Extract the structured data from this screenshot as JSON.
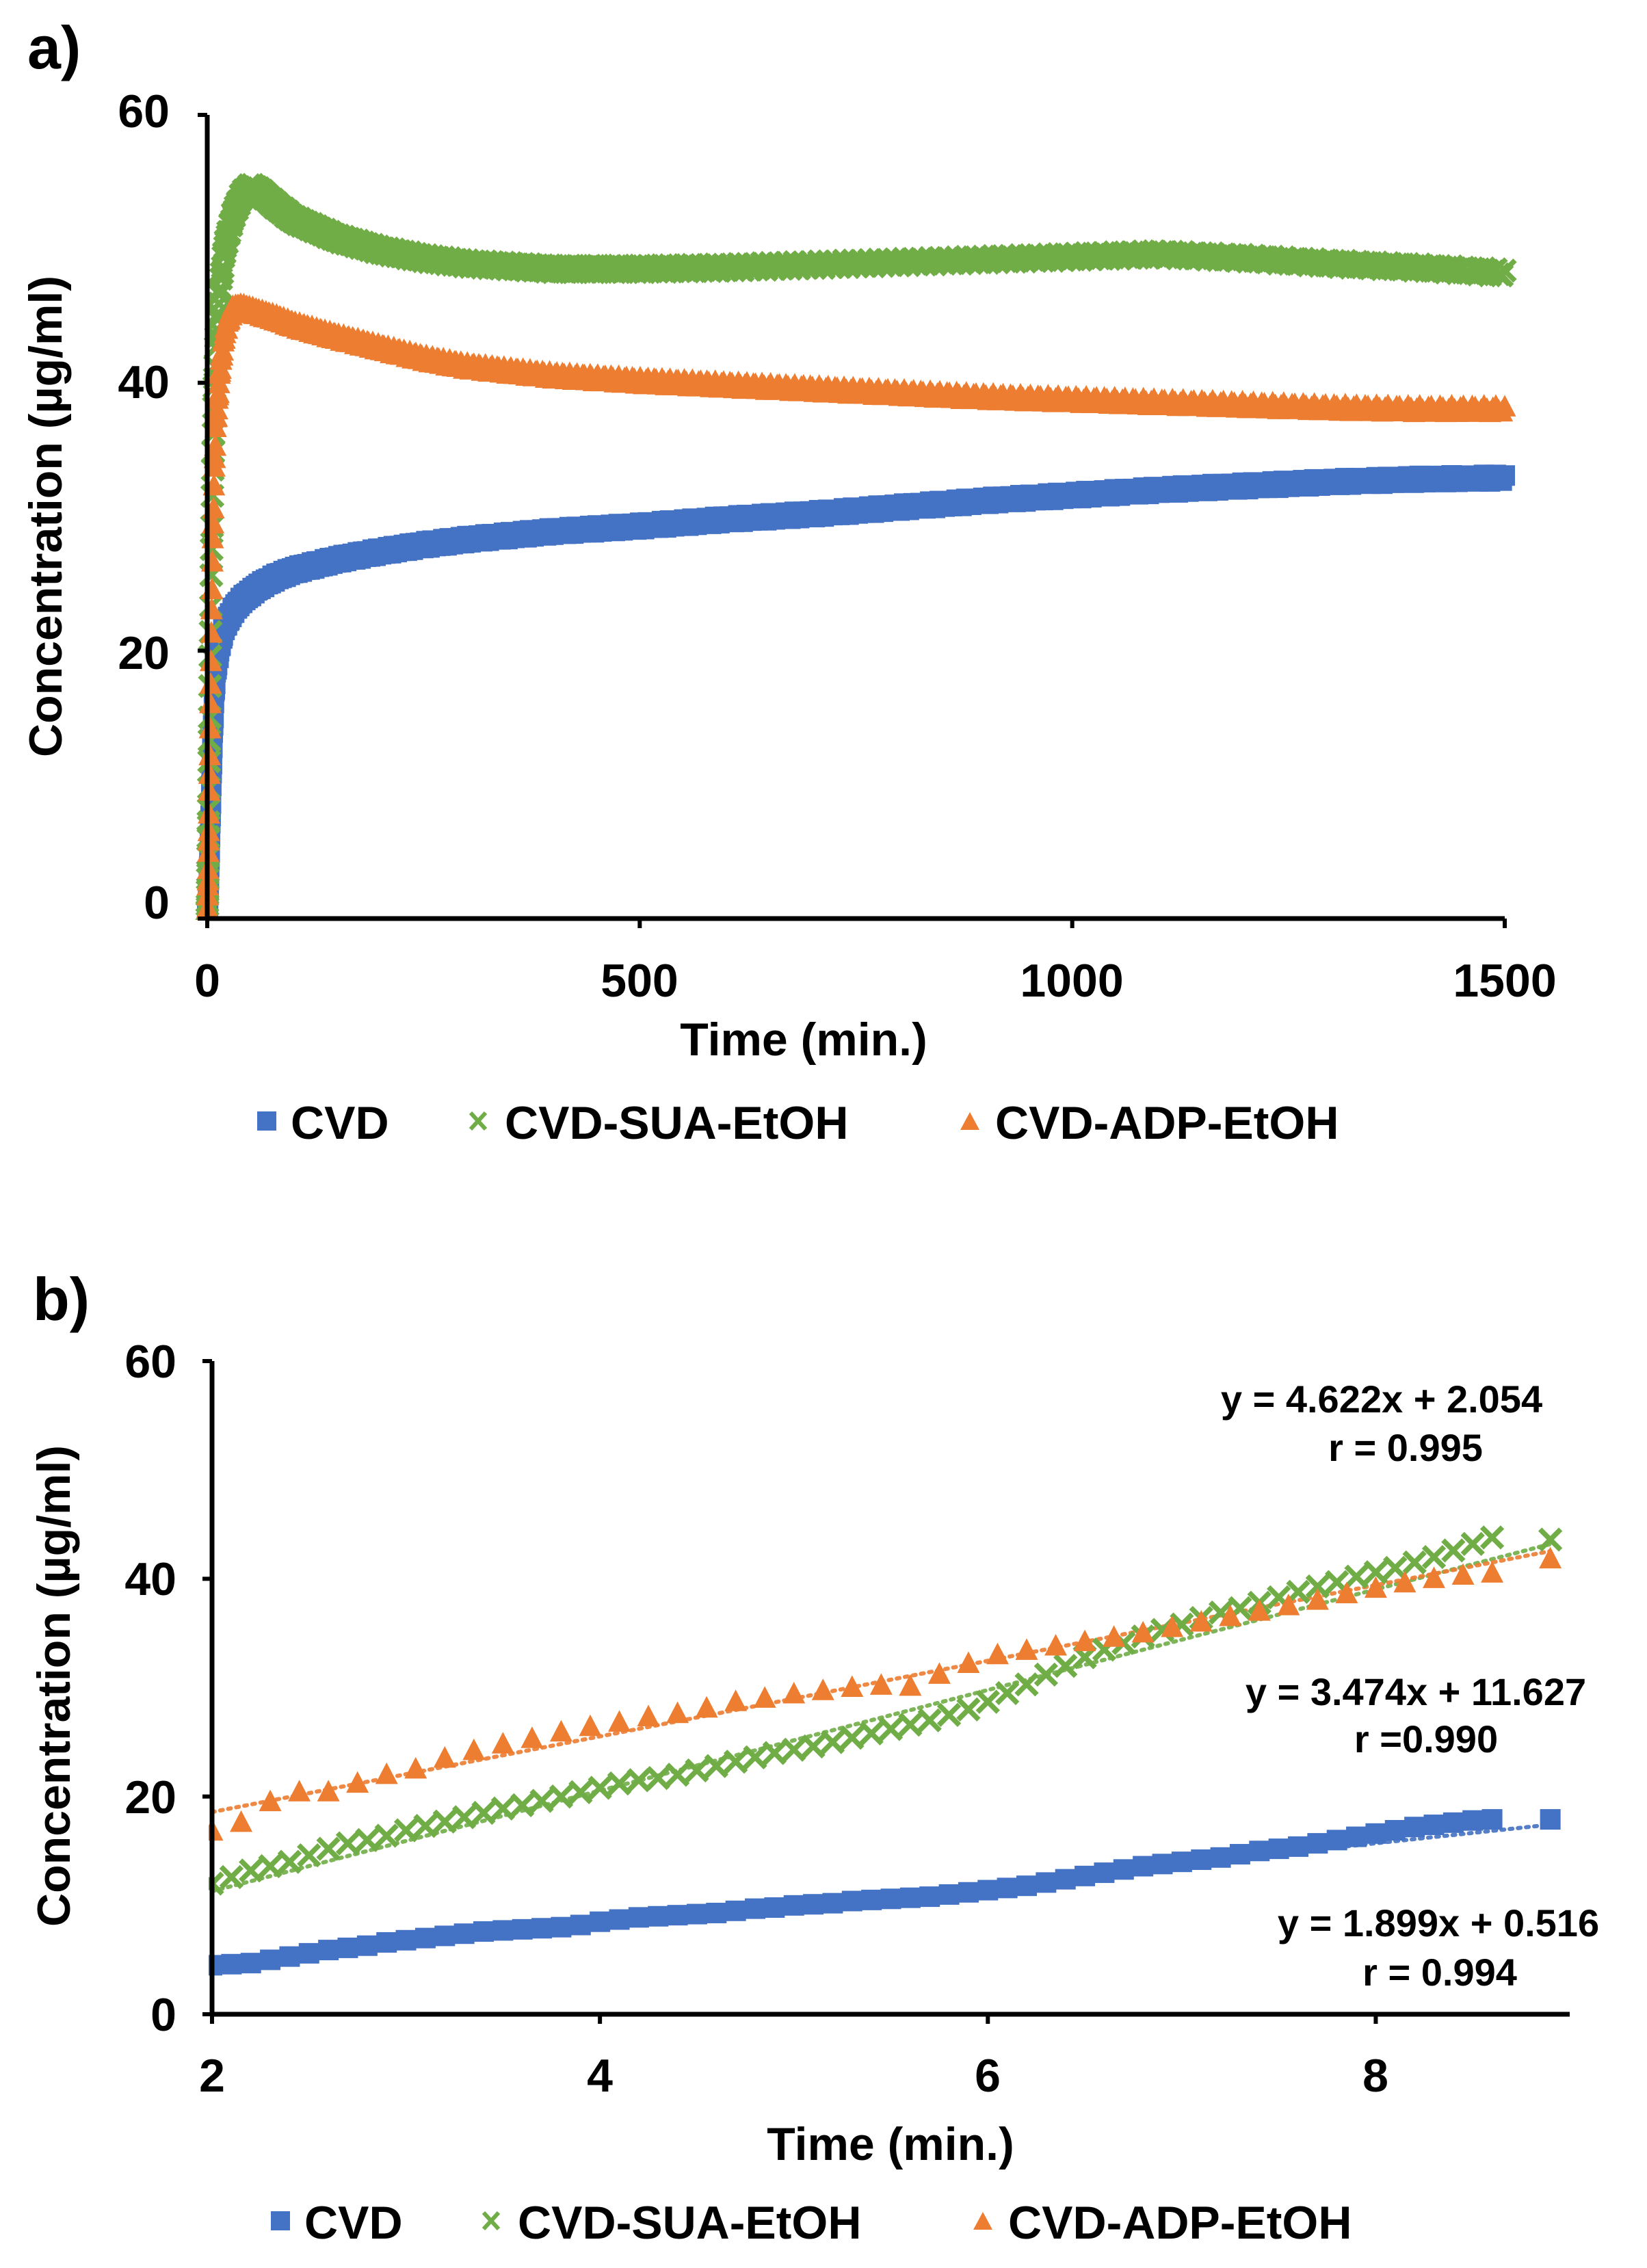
{
  "colors": {
    "cvd": "#4472C4",
    "sua": "#70AD47",
    "adp": "#ED7D31",
    "axis": "#000000",
    "text": "#000000"
  },
  "chart_data": [
    {
      "panel_label": "a)",
      "type": "scatter",
      "xlabel": "Time (min.)",
      "ylabel": "Concentration (µg/ml)",
      "xlim": [
        0,
        1500
      ],
      "ylim": [
        0,
        60
      ],
      "xticks": [
        "0",
        "500",
        "1000",
        "1500"
      ],
      "yticks": [
        "0",
        "20",
        "40",
        "60"
      ],
      "legend_position": "bottom",
      "series": [
        {
          "name": "CVD",
          "marker": "square",
          "color": "#4472C4",
          "x": [
            0,
            2,
            4,
            6,
            8,
            10,
            15,
            20,
            30,
            40,
            60,
            80,
            100,
            150,
            200,
            250,
            300,
            400,
            500,
            600,
            700,
            800,
            900,
            1000,
            1100,
            1200,
            1300,
            1400,
            1500
          ],
          "y": [
            0,
            3,
            8,
            13,
            16.5,
            18.5,
            20.5,
            21.8,
            23,
            23.8,
            24.8,
            25.5,
            26,
            26.8,
            27.4,
            27.9,
            28.3,
            28.9,
            29.3,
            29.8,
            30.2,
            30.7,
            31.2,
            31.6,
            32,
            32.3,
            32.6,
            32.8,
            32.9
          ]
        },
        {
          "name": "CVD-SUA-EtOH",
          "marker": "x",
          "color": "#70AD47",
          "x": [
            0,
            2,
            4,
            6,
            8,
            10,
            15,
            20,
            30,
            40,
            50,
            60,
            80,
            100,
            150,
            200,
            250,
            300,
            400,
            500,
            600,
            700,
            800,
            900,
            1000,
            1100,
            1200,
            1300,
            1400,
            1500
          ],
          "y": [
            0,
            10,
            22,
            32,
            39,
            43,
            47,
            50,
            52.5,
            54,
            54.6,
            54.3,
            53.2,
            52.2,
            50.8,
            49.9,
            49.3,
            48.9,
            48.5,
            48.5,
            48.6,
            48.8,
            49,
            49.2,
            49.4,
            49.6,
            49.3,
            48.9,
            48.6,
            48.2
          ]
        },
        {
          "name": "CVD-ADP-EtOH",
          "marker": "triangle",
          "color": "#ED7D31",
          "x": [
            0,
            2,
            4,
            6,
            8,
            10,
            15,
            20,
            25,
            30,
            40,
            60,
            80,
            100,
            150,
            200,
            250,
            300,
            400,
            500,
            600,
            700,
            800,
            900,
            1000,
            1100,
            1200,
            1300,
            1400,
            1500
          ],
          "y": [
            0,
            8,
            18,
            27,
            33,
            37,
            41,
            43.5,
            44.8,
            45.5,
            45.6,
            45.2,
            44.8,
            44.3,
            43.4,
            42.6,
            41.8,
            41.2,
            40.5,
            40.1,
            39.8,
            39.5,
            39.2,
            38.9,
            38.7,
            38.5,
            38.3,
            38.1,
            38,
            38
          ]
        }
      ]
    },
    {
      "panel_label": "b)",
      "type": "scatter",
      "xlabel": "Time (min.)",
      "ylabel": "Concentration (µg/ml)",
      "xlim": [
        2,
        9
      ],
      "ylim": [
        0,
        60
      ],
      "xticks": [
        "2",
        "4",
        "6",
        "8"
      ],
      "yticks": [
        "0",
        "20",
        "40",
        "60"
      ],
      "legend_position": "bottom",
      "trendlines": [
        {
          "series": "CVD",
          "slope": 1.899,
          "intercept": 0.516,
          "equation": "y = 1.899x + 0.516",
          "r": "r = 0.994"
        },
        {
          "series": "CVD-SUA-EtOH",
          "slope": 4.622,
          "intercept": 2.054,
          "equation": "y = 4.622x + 2.054",
          "r": "r = 0.995"
        },
        {
          "series": "CVD-ADP-EtOH",
          "slope": 3.474,
          "intercept": 11.627,
          "equation": "y = 3.474x + 11.627",
          "r": "r =0.990"
        }
      ],
      "series": [
        {
          "name": "CVD",
          "marker": "square",
          "color": "#4472C4",
          "x": [
            2.0,
            2.1,
            2.2,
            2.3,
            2.4,
            2.5,
            2.6,
            2.7,
            2.8,
            2.9,
            3.0,
            3.1,
            3.2,
            3.3,
            3.4,
            3.5,
            3.6,
            3.7,
            3.8,
            3.9,
            4.0,
            4.1,
            4.2,
            4.3,
            4.4,
            4.5,
            4.6,
            4.7,
            4.8,
            4.9,
            5.0,
            5.1,
            5.2,
            5.3,
            5.4,
            5.5,
            5.6,
            5.7,
            5.8,
            5.9,
            6.0,
            6.1,
            6.2,
            6.3,
            6.4,
            6.5,
            6.6,
            6.7,
            6.8,
            6.9,
            7.0,
            7.1,
            7.2,
            7.3,
            7.4,
            7.5,
            7.6,
            7.7,
            7.8,
            7.9,
            8.0,
            8.1,
            8.2,
            8.3,
            8.4,
            8.5,
            8.6,
            8.9
          ],
          "y": [
            4.5,
            4.6,
            4.7,
            5.0,
            5.3,
            5.6,
            5.9,
            6.1,
            6.3,
            6.6,
            6.8,
            7.0,
            7.2,
            7.4,
            7.6,
            7.7,
            7.8,
            7.9,
            8.0,
            8.2,
            8.5,
            8.7,
            8.9,
            9.0,
            9.1,
            9.2,
            9.3,
            9.5,
            9.7,
            9.8,
            10.0,
            10.1,
            10.2,
            10.4,
            10.5,
            10.6,
            10.7,
            10.8,
            11.0,
            11.2,
            11.4,
            11.6,
            11.8,
            12.1,
            12.4,
            12.7,
            13.0,
            13.3,
            13.6,
            13.8,
            14.0,
            14.2,
            14.4,
            14.7,
            15.0,
            15.2,
            15.4,
            15.7,
            16.0,
            16.3,
            16.6,
            16.9,
            17.2,
            17.4,
            17.6,
            17.8,
            17.9,
            17.9
          ]
        },
        {
          "name": "CVD-SUA-EtOH",
          "marker": "x",
          "color": "#70AD47",
          "x": [
            2.0,
            2.1,
            2.2,
            2.3,
            2.4,
            2.5,
            2.6,
            2.7,
            2.8,
            2.9,
            3.0,
            3.1,
            3.2,
            3.3,
            3.4,
            3.5,
            3.6,
            3.7,
            3.8,
            3.9,
            4.0,
            4.1,
            4.2,
            4.3,
            4.4,
            4.5,
            4.6,
            4.7,
            4.8,
            4.9,
            5.0,
            5.1,
            5.2,
            5.3,
            5.4,
            5.5,
            5.6,
            5.7,
            5.8,
            5.9,
            6.0,
            6.1,
            6.2,
            6.3,
            6.4,
            6.5,
            6.6,
            6.7,
            6.8,
            6.9,
            7.0,
            7.1,
            7.2,
            7.3,
            7.4,
            7.5,
            7.6,
            7.7,
            7.8,
            7.9,
            8.0,
            8.1,
            8.2,
            8.3,
            8.4,
            8.5,
            8.6,
            8.9
          ],
          "y": [
            12.0,
            12.6,
            13.2,
            13.6,
            14.0,
            14.6,
            15.2,
            15.7,
            16.0,
            16.4,
            16.9,
            17.3,
            17.7,
            18.1,
            18.5,
            18.9,
            19.2,
            19.6,
            20.0,
            20.4,
            20.8,
            21.2,
            21.5,
            21.7,
            22.0,
            22.4,
            22.8,
            23.2,
            23.6,
            24.0,
            24.3,
            24.6,
            25.0,
            25.4,
            25.8,
            26.2,
            26.6,
            27.0,
            27.5,
            28.0,
            28.7,
            29.5,
            30.3,
            31.2,
            32.0,
            32.8,
            33.5,
            34.1,
            34.7,
            35.3,
            35.8,
            36.4,
            36.9,
            37.3,
            37.8,
            38.3,
            38.8,
            39.3,
            39.7,
            40.2,
            40.6,
            41.0,
            41.5,
            42.0,
            42.6,
            43.2,
            43.8,
            43.6
          ]
        },
        {
          "name": "CVD-ADP-EtOH",
          "marker": "triangle",
          "color": "#ED7D31",
          "x": [
            2.0,
            2.15,
            2.3,
            2.45,
            2.6,
            2.75,
            2.9,
            3.05,
            3.2,
            3.35,
            3.5,
            3.65,
            3.8,
            3.95,
            4.1,
            4.25,
            4.4,
            4.55,
            4.7,
            4.85,
            5.0,
            5.15,
            5.3,
            5.45,
            5.6,
            5.75,
            5.9,
            6.05,
            6.2,
            6.35,
            6.5,
            6.65,
            6.8,
            6.95,
            7.1,
            7.25,
            7.4,
            7.55,
            7.7,
            7.85,
            8.0,
            8.15,
            8.3,
            8.45,
            8.6,
            8.9
          ],
          "y": [
            16.8,
            17.6,
            19.5,
            20.4,
            20.4,
            21.2,
            22.0,
            22.5,
            23.5,
            24.2,
            24.8,
            25.3,
            25.9,
            26.4,
            26.8,
            27.3,
            27.6,
            28.1,
            28.7,
            29.0,
            29.4,
            29.7,
            30.0,
            30.2,
            30.1,
            31.2,
            32.2,
            33.0,
            33.4,
            33.8,
            34.2,
            34.6,
            35.0,
            35.5,
            36.0,
            36.5,
            37.0,
            37.5,
            38.0,
            38.6,
            39.1,
            39.6,
            40.0,
            40.3,
            40.5,
            41.8
          ]
        }
      ]
    }
  ]
}
